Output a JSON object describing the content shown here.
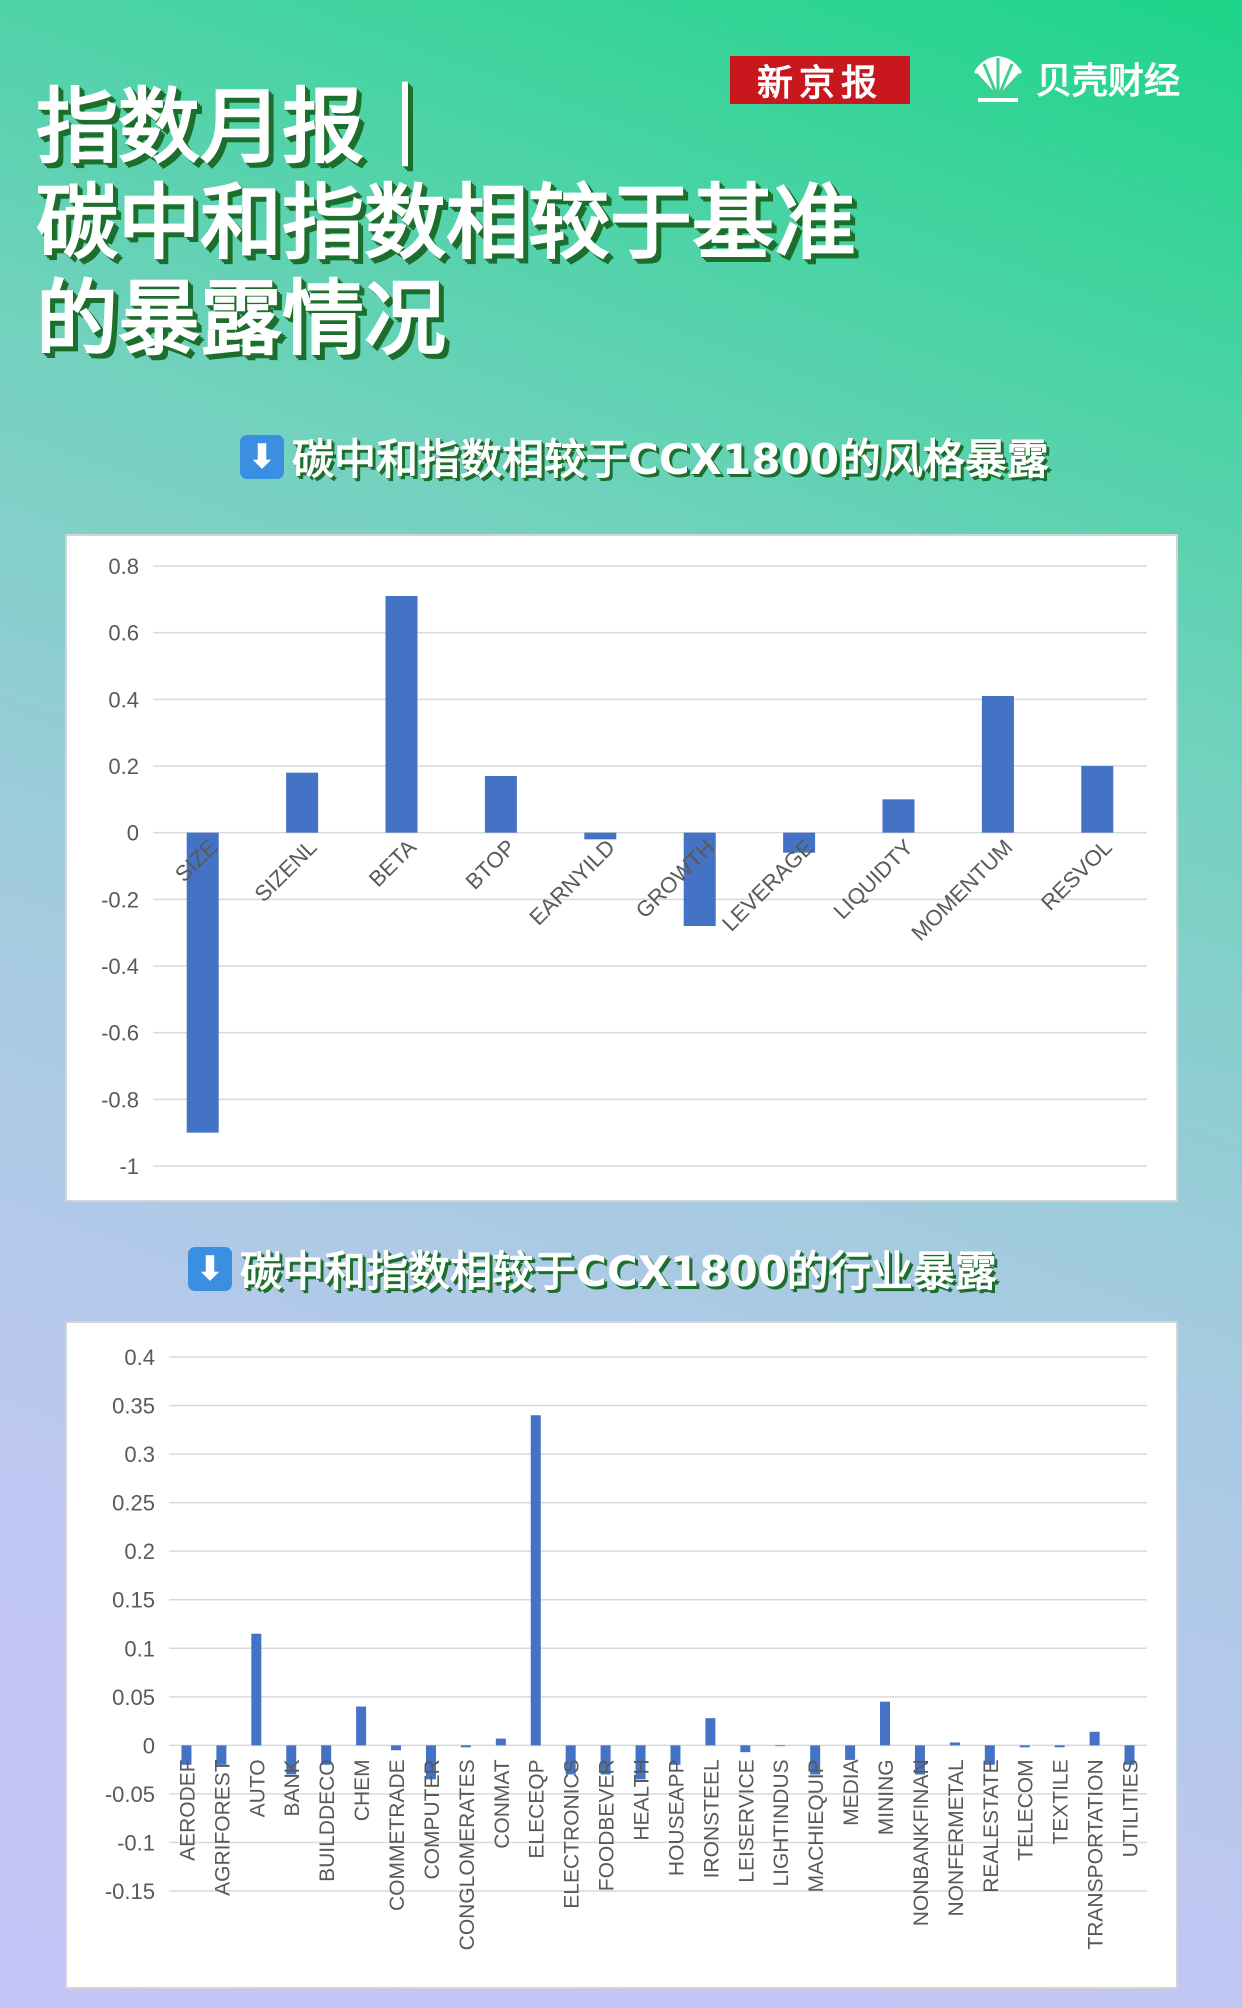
{
  "brands": {
    "xinjingbao": "新京报",
    "beike": "贝壳财经",
    "beike_icon": "shell-logo-icon"
  },
  "title_lines": [
    "指数月报｜",
    "碳中和指数相较于基准",
    "的暴露情况"
  ],
  "sections": {
    "style": "碳中和指数相较于CCX1800的风格暴露",
    "industry": "碳中和指数相较于CCX1800的行业暴露",
    "arrow_icon": "down-arrow-icon"
  },
  "colors": {
    "bar": "#4472c4",
    "grid": "#d9d9d9",
    "title_shadow": "#1b6e2b"
  },
  "chart_data": [
    {
      "type": "bar",
      "title": "",
      "xlabel": "",
      "ylabel": "",
      "ylim": [
        -1,
        0.8
      ],
      "yticks": [
        0.8,
        0.6,
        0.4,
        0.2,
        0,
        -0.2,
        -0.4,
        -0.6,
        -0.8,
        -1
      ],
      "ytick_labels": [
        "0.8",
        "0.6",
        "0.4",
        "0.2",
        "0",
        "-0.2",
        "-0.4",
        "-0.6",
        "-0.8",
        "-1"
      ],
      "grid": true,
      "legend": "none",
      "categories": [
        "SIZE",
        "SIZENL",
        "BETA",
        "BTOP",
        "EARNYILD",
        "GROWTH",
        "LEVERAGE",
        "LIQUIDTY",
        "MOMENTUM",
        "RESVOL"
      ],
      "values": [
        -0.9,
        0.18,
        0.71,
        0.17,
        -0.02,
        -0.28,
        -0.06,
        0.1,
        0.41,
        0.2
      ]
    },
    {
      "type": "bar",
      "title": "",
      "xlabel": "",
      "ylabel": "",
      "ylim": [
        -0.15,
        0.4
      ],
      "yticks": [
        0.4,
        0.35,
        0.3,
        0.25,
        0.2,
        0.15,
        0.1,
        0.05,
        0,
        -0.05,
        -0.1,
        -0.15
      ],
      "ytick_labels": [
        "0.4",
        "0.35",
        "0.3",
        "0.25",
        "0.2",
        "0.15",
        "0.1",
        "0.05",
        "0",
        "-0.05",
        "-0.1",
        "-0.15"
      ],
      "grid": true,
      "legend": "none",
      "categories": [
        "AERODEF",
        "AGRIFOREST",
        "AUTO",
        "BANK",
        "BUILDDECO",
        "CHEM",
        "COMMETRADE",
        "COMPUTER",
        "CONGLOMERATES",
        "CONMAT",
        "ELECEQP",
        "ELECTRONICS",
        "FOODBEVER",
        "HEALTH",
        "HOUSEAPP",
        "IRONSTEEL",
        "LEISERVICE",
        "LIGHTINDUS",
        "MACHIEQUIP",
        "MEDIA",
        "MINING",
        "NONBANKFINAN",
        "NONFERMETAL",
        "REALESTATE",
        "TELECOM",
        "TEXTILE",
        "TRANSPORTATION",
        "UTILITIES"
      ],
      "values": [
        -0.02,
        -0.02,
        0.115,
        -0.03,
        -0.02,
        0.04,
        -0.005,
        -0.035,
        -0.002,
        0.007,
        0.34,
        -0.03,
        -0.03,
        -0.035,
        -0.02,
        0.028,
        -0.007,
        0,
        -0.03,
        -0.015,
        0.045,
        -0.03,
        0.003,
        -0.02,
        -0.002,
        -0.002,
        0.014,
        -0.02
      ]
    }
  ]
}
